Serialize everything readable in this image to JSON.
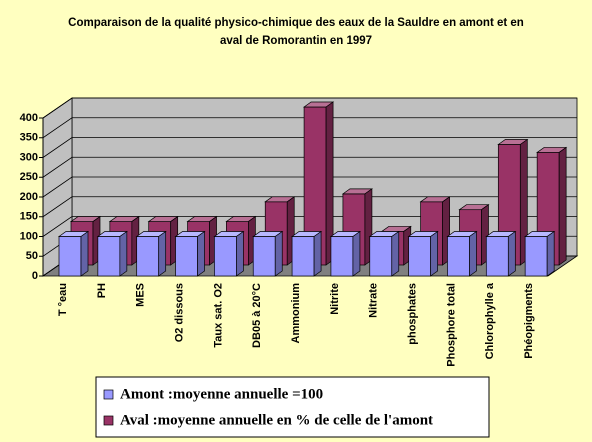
{
  "chart_data": {
    "type": "bar",
    "title": "Comparaison de la qualité physico-chimique des eaux de la Sauldre en amont et en aval de Romorantin en 1997",
    "categories": [
      "T °eau",
      "PH",
      "MES",
      "O2 dissous",
      "Taux sat. O2",
      "DB05 à 20°C",
      "Ammonium",
      "Nitrite",
      "Nitrate",
      "phosphates",
      "Phosphore total",
      "Chlorophylle a",
      "Phéopigments"
    ],
    "series": [
      {
        "name": "Amont :moyenne annuelle =100",
        "color": "#9999ff",
        "values": [
          100,
          100,
          100,
          100,
          100,
          100,
          100,
          100,
          100,
          100,
          100,
          100,
          100
        ]
      },
      {
        "name": "Aval :moyenne annuelle en % de celle de l'amont",
        "color": "#993366",
        "values": [
          110,
          110,
          110,
          110,
          110,
          160,
          400,
          180,
          85,
          160,
          140,
          305,
          285
        ]
      }
    ],
    "ylim": [
      0,
      400
    ],
    "yticks": [
      0,
      50,
      100,
      150,
      200,
      250,
      300,
      350,
      400
    ],
    "grid": true
  }
}
